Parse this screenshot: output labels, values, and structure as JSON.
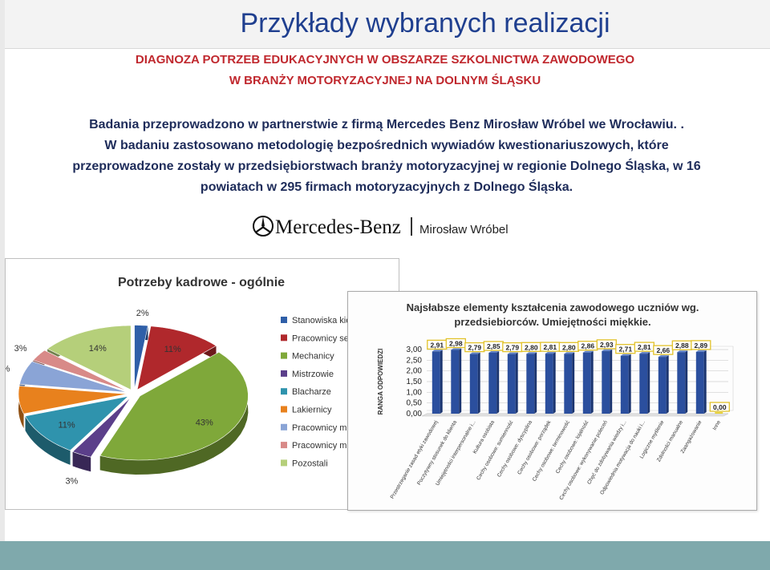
{
  "page": {
    "title": "Przykłady wybranych realizacji",
    "subtitle_line1": "DIAGNOZA POTRZEB EDUKACYJNYCH W OBSZARZE SZKOLNICTWA ZAWODOWEGO",
    "subtitle_line2": "W BRANŻY MOTORYZACYJNEJ NA DOLNYM ŚLĄSKU",
    "intro_line1": "Badania przeprowadzono w partnerstwie z firmą Mercedes Benz Mirosław Wróbel we Wrocławiu. .",
    "intro_line2": "W badaniu zastosowano metodologię bezpośrednich wywiadów kwestionariuszowych, które",
    "intro_line3": "przeprowadzone zostały w przedsiębiorstwach branży motoryzacyjnej w regionie Dolnego Śląska, w 16",
    "intro_line4": "powiatach w 295 firmach motoryzacyjnych z Dolnego Śląska.",
    "logo_brand": "Mercedes-Benz",
    "logo_dealer": "Mirosław Wróbel"
  },
  "chart_data": [
    {
      "type": "pie",
      "title": "Potrzeby kadrowe - ogólnie",
      "legend_position": "right",
      "slices": [
        {
          "label": "Stanowiska kie",
          "value": 2,
          "display": "2%",
          "color": "#2f5fa8"
        },
        {
          "label": "Pracownicy se",
          "value": 11,
          "display": "11%",
          "color": "#b0282c"
        },
        {
          "label": "Mechanicy",
          "value": 43,
          "display": "43%",
          "color": "#7fa83a"
        },
        {
          "label": "Mistrzowie",
          "value": 3,
          "display": "3%",
          "color": "#5b3f8a"
        },
        {
          "label": "Blacharze",
          "value": 11,
          "display": "11%",
          "color": "#2f93ad"
        },
        {
          "label": "Lakiernicy",
          "value": 7,
          "display": "7%",
          "color": "#e8811d"
        },
        {
          "label": "Pracownicy m",
          "value": 6,
          "display": "6%",
          "color": "#8aa4d6"
        },
        {
          "label": "Pracownicy m",
          "value": 3,
          "display": "3%",
          "color": "#d88a88"
        },
        {
          "label": "Pozostali",
          "value": 14,
          "display": "14%",
          "color": "#b5cf7a"
        }
      ]
    },
    {
      "type": "bar",
      "title_line1": "Najsłabsze elementy kształcenia zawodowego uczniów wg.",
      "title_line2": "przedsiebiorców. Umiejętności miękkie.",
      "ylabel": "RANGA ODPOWIEDZI",
      "ylim": [
        0,
        3
      ],
      "yticks": [
        "0,00",
        "0,50",
        "1,00",
        "1,50",
        "2,00",
        "2,50",
        "3,00"
      ],
      "grid": true,
      "bar_color": "#2b4f9e",
      "categories": [
        "Przestrzeganie zasad etyki zawodowej",
        "Poczytywny stosunek do klienta",
        "Umiejętności interpersonalne i...",
        "Kultura osobista",
        "Cechy osobowe: sumienność",
        "Cechy osobowe: dyscyplina",
        "Cechy osobowe: porządek",
        "Cechy osobowe: terminowość",
        "Cechy osobowe: lojalność",
        "Cechy osobowe: wykonywanie poleceń",
        "Chęć do zdobywania wiedzy i...",
        "Odpowiednia motywacja do nauki i...",
        "Logiczne myślenie",
        "Zdolności manualne",
        "Zaangażowanie",
        "Inne"
      ],
      "values": [
        2.91,
        2.98,
        2.79,
        2.85,
        2.79,
        2.8,
        2.81,
        2.8,
        2.86,
        2.93,
        2.71,
        2.81,
        2.66,
        2.88,
        2.89,
        0.0
      ],
      "value_labels": [
        "2,91",
        "2,98",
        "2,79",
        "2,85",
        "2,79",
        "2,80",
        "2,81",
        "2,80",
        "2,86",
        "2,93",
        "2,71",
        "2,81",
        "2,66",
        "2,88",
        "2,89",
        "0,00"
      ]
    }
  ]
}
